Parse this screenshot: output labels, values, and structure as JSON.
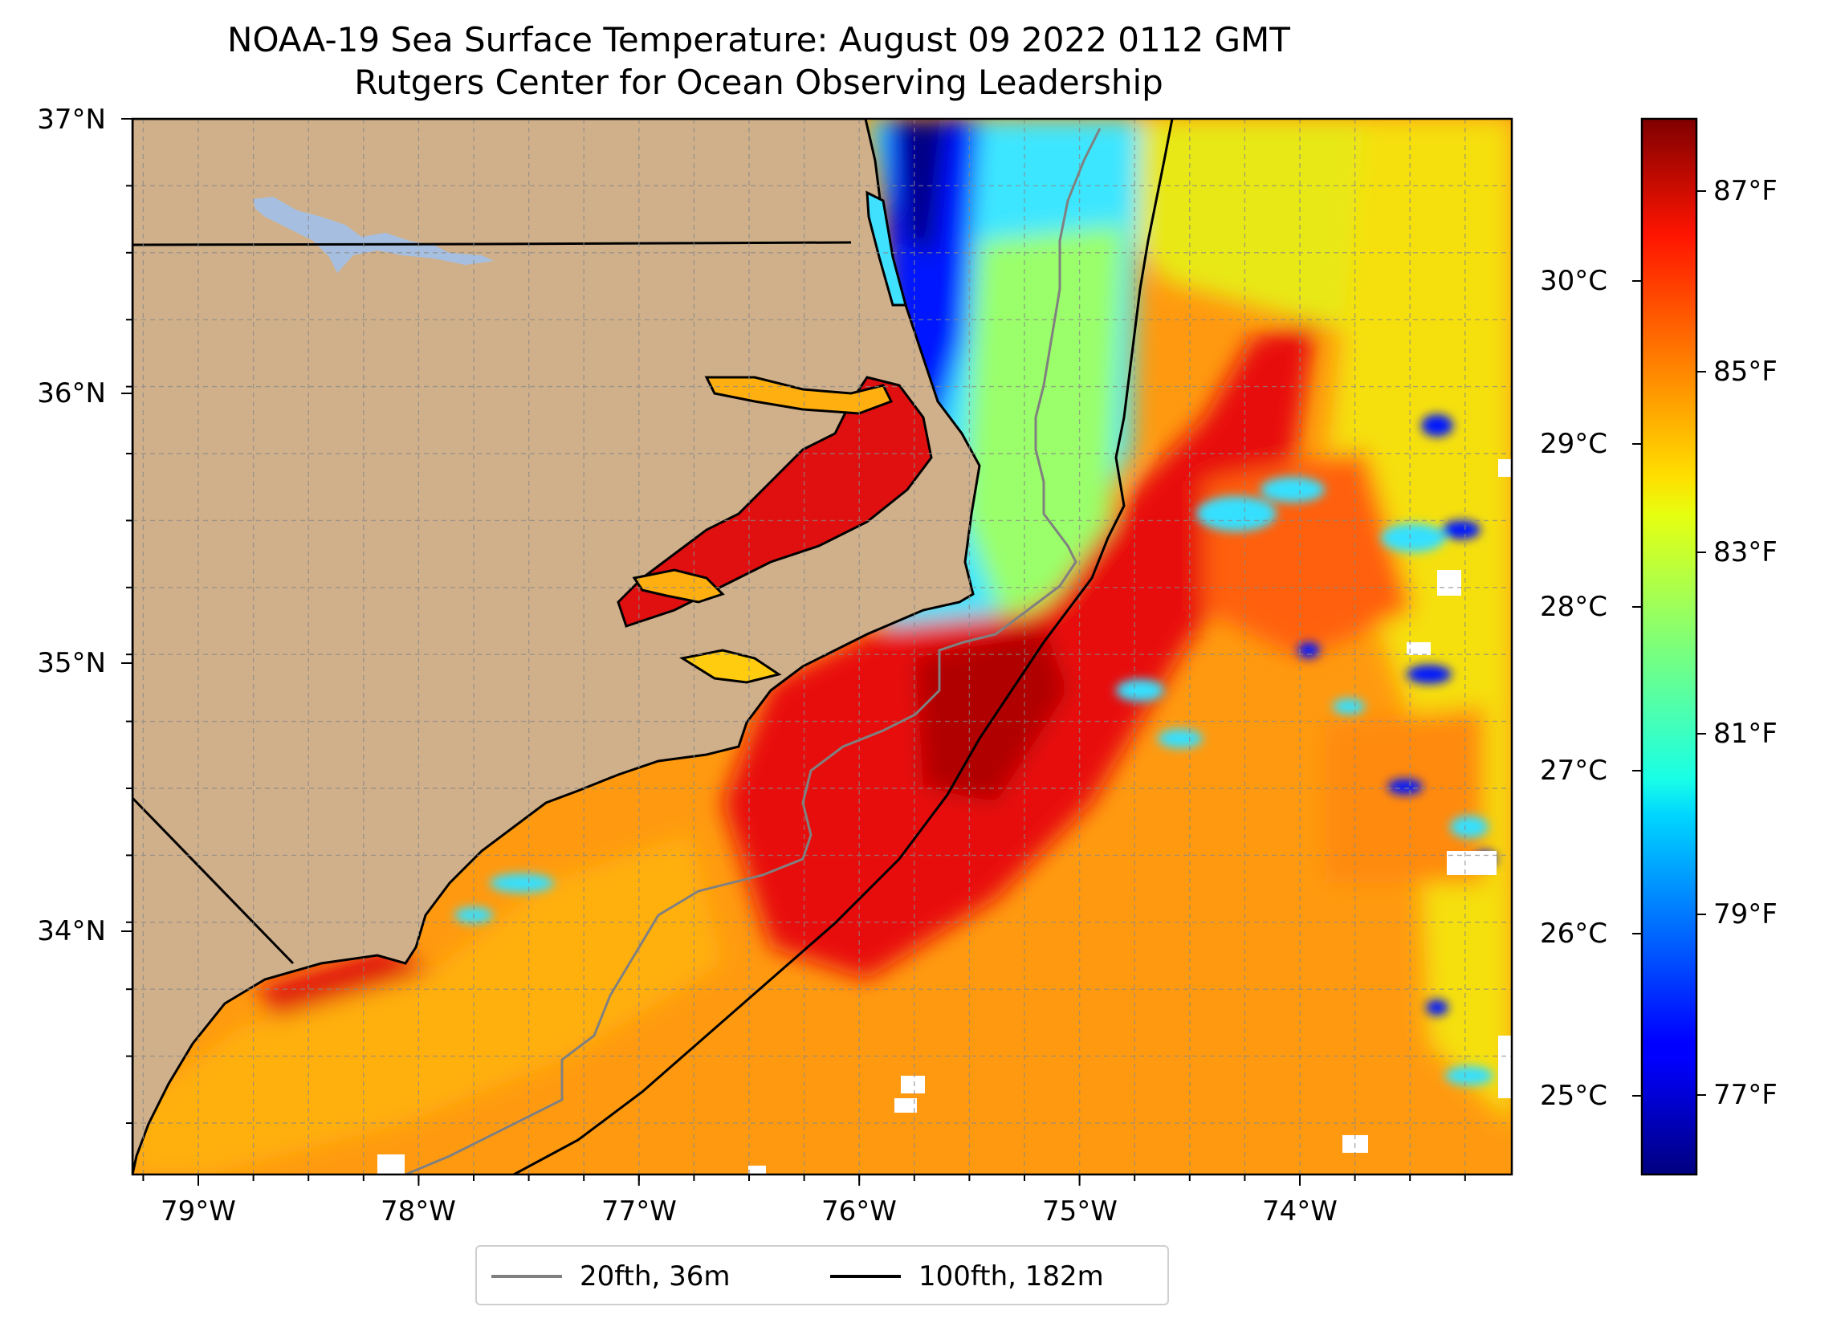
{
  "figure": {
    "title_line1": "NOAA-19 Sea Surface Temperature: August 09 2022 0112 GMT",
    "title_line2": "Rutgers Center for Ocean Observing Leadership"
  },
  "map": {
    "lat_labels": [
      "37°N",
      "36°N",
      "35°N",
      "34°N"
    ],
    "lon_labels": [
      "79°W",
      "78°W",
      "77°W",
      "76°W",
      "75°W",
      "74°W"
    ],
    "land_color": "#d0b08a",
    "lake_color": "#a6bfe0",
    "colormap": "jet"
  },
  "colorbar": {
    "celsius_labels": [
      "30°C",
      "29°C",
      "28°C",
      "27°C",
      "26°C",
      "25°C"
    ],
    "fahrenheit_labels": [
      "87°F",
      "85°F",
      "83°F",
      "81°F",
      "79°F",
      "77°F"
    ]
  },
  "legend": {
    "items": [
      {
        "label": "20fth, 36m",
        "color": "#808080"
      },
      {
        "label": "100fth, 182m",
        "color": "#000000"
      }
    ]
  }
}
